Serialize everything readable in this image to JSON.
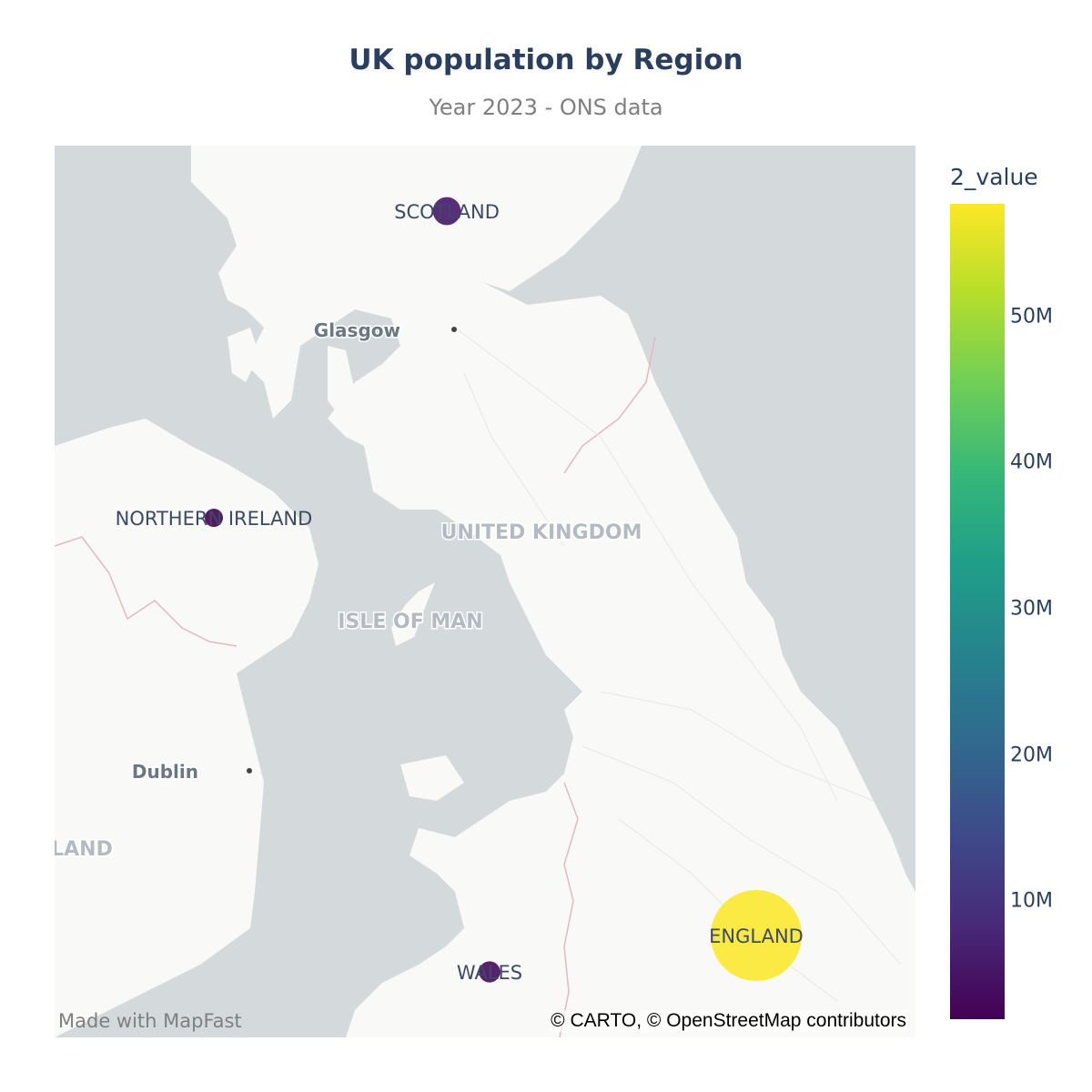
{
  "title": "UK population by Region",
  "subtitle": "Year 2023 - ONS data",
  "map": {
    "place_labels": [
      {
        "name": "Glasgow"
      },
      {
        "name": "Dublin"
      },
      {
        "name": "UNITED KINGDOM"
      },
      {
        "name": "ISLE OF MAN"
      },
      {
        "name": "LAND"
      }
    ],
    "credit": "© CARTO, © OpenStreetMap contributors",
    "watermark": "Made with MapFast",
    "colors": {
      "water": "#d4dadc",
      "land": "#f9f9f8",
      "border": "#e3b9c0",
      "roads": "#e6e6e6"
    }
  },
  "chart_data": {
    "type": "scatter",
    "points": [
      {
        "region": "SCOTLAND",
        "value": 5450000
      },
      {
        "region": "NORTHERN IRELAND",
        "value": 1920000
      },
      {
        "region": "WALES",
        "value": 3130000
      },
      {
        "region": "ENGLAND",
        "value": 57700000
      }
    ],
    "colorscale": "viridis",
    "colorbar": {
      "title": "2_value",
      "range": [
        1920000,
        57700000
      ],
      "ticks": [
        {
          "label": "10M",
          "value": 10000000
        },
        {
          "label": "20M",
          "value": 20000000
        },
        {
          "label": "30M",
          "value": 30000000
        },
        {
          "label": "40M",
          "value": 40000000
        },
        {
          "label": "50M",
          "value": 50000000
        }
      ]
    }
  }
}
